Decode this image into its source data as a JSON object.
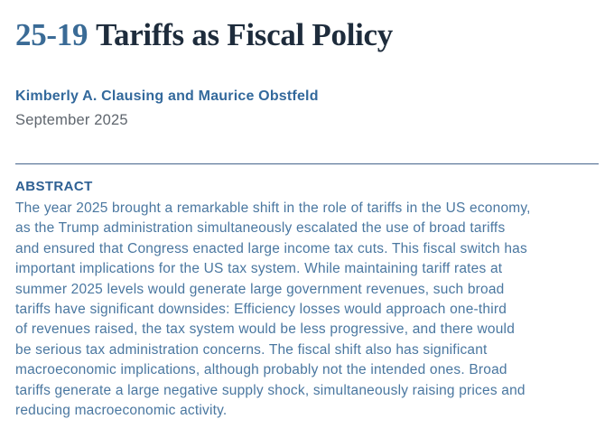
{
  "paper": {
    "report_number": "25-19",
    "title": "Tariffs as Fiscal Policy",
    "authors": [
      {
        "name": "Kimberly A. Clausing"
      },
      {
        "name": "Maurice Obstfeld"
      }
    ],
    "authors_connector": " and ",
    "date": "September 2025",
    "abstract": {
      "heading": "ABSTRACT",
      "text": "The year 2025 brought a remarkable shift in the role of tariffs in the US economy,\nas the Trump administration simultaneously escalated the use of broad tariffs\nand ensured that Congress enacted large income tax cuts. This fiscal switch has\nimportant implications for the US tax system. While maintaining tariff rates at\nsummer 2025 levels would generate large government revenues, such broad\ntariffs have significant downsides: Efficiency losses would approach one-third\nof revenues raised, the tax system would be less progressive, and there would\nbe serious tax administration concerns. The fiscal shift also has significant\nmacroeconomic implications, although probably not the intended ones. Broad\ntariffs generate a large negative supply shock, simultaneously raising prices and\nreducing macroeconomic activity."
    },
    "colors": {
      "report_number": "#3a6b96",
      "title": "#1e2c3c",
      "author_link": "#33699c",
      "date": "#5f666e",
      "divider": "#46648c",
      "abstract_heading": "#2e6093",
      "abstract_text": "#4a77a0",
      "background": "#ffffff"
    }
  }
}
